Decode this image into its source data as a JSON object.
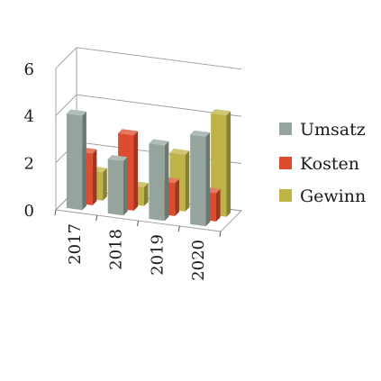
{
  "chart_data": {
    "type": "bar",
    "categories": [
      "2017",
      "2018",
      "2019",
      "2020"
    ],
    "series": [
      {
        "name": "Umsatz",
        "values": [
          4.0,
          2.3,
          3.2,
          3.8
        ],
        "color": "#95a59d"
      },
      {
        "name": "Kosten",
        "values": [
          2.2,
          3.2,
          1.4,
          1.2
        ],
        "color": "#dc4c2e"
      },
      {
        "name": "Gewinn",
        "values": [
          1.2,
          0.8,
          2.4,
          4.3
        ],
        "color": "#bdb347"
      }
    ],
    "yticks": [
      "0",
      "2",
      "4",
      "6"
    ],
    "ylim": [
      0,
      6
    ],
    "grid": true,
    "legend": "right",
    "title": "",
    "xlabel": "",
    "ylabel": ""
  }
}
